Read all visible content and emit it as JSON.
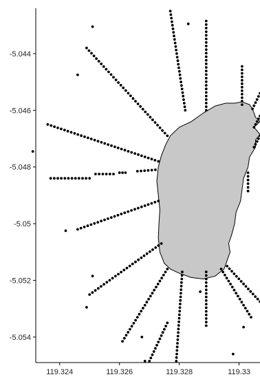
{
  "chart_data": {
    "type": "scatter",
    "title": "",
    "xlabel": "",
    "ylabel": "",
    "xlim": [
      119.3232,
      119.3307
    ],
    "ylim": [
      -5.0549,
      -5.0424
    ],
    "x_ticks": [
      "119.324",
      "119.326",
      "119.328",
      "119.33"
    ],
    "x_tick_values": [
      119.324,
      119.326,
      119.328,
      119.33
    ],
    "y_ticks": [
      "-5.044",
      "-5.046",
      "-5.048",
      "-5.05",
      "-5.052",
      "-5.054"
    ],
    "y_tick_values": [
      -5.044,
      -5.046,
      -5.048,
      -5.05,
      -5.052,
      -5.054
    ],
    "grid": false,
    "legend": false,
    "colors": {
      "island_fill": "#c8c8c8",
      "points": "#000000",
      "axes": "#000000"
    },
    "island_outline": [
      [
        119.32955,
        -5.04575
      ],
      [
        119.32985,
        -5.04575
      ],
      [
        119.3301,
        -5.0457
      ],
      [
        119.33035,
        -5.0458
      ],
      [
        119.33045,
        -5.04595
      ],
      [
        119.33055,
        -5.04625
      ],
      [
        119.3307,
        -5.0464
      ],
      [
        119.3305,
        -5.0466
      ],
      [
        119.3307,
        -5.04685
      ],
      [
        119.33055,
        -5.04705
      ],
      [
        119.33055,
        -5.0473
      ],
      [
        119.33035,
        -5.04765
      ],
      [
        119.3303,
        -5.048
      ],
      [
        119.33015,
        -5.0484
      ],
      [
        119.3301,
        -5.0488
      ],
      [
        119.33005,
        -5.0492
      ],
      [
        119.3299,
        -5.0496
      ],
      [
        119.32985,
        -5.05
      ],
      [
        119.32975,
        -5.0504
      ],
      [
        119.32965,
        -5.0507
      ],
      [
        119.3297,
        -5.051
      ],
      [
        119.3296,
        -5.0513
      ],
      [
        119.3295,
        -5.0516
      ],
      [
        119.3292,
        -5.05185
      ],
      [
        119.3288,
        -5.05195
      ],
      [
        119.3284,
        -5.0519
      ],
      [
        119.328,
        -5.05175
      ],
      [
        119.3277,
        -5.0516
      ],
      [
        119.3275,
        -5.0514
      ],
      [
        119.32735,
        -5.051
      ],
      [
        119.3273,
        -5.0505
      ],
      [
        119.32732,
        -5.05
      ],
      [
        119.32735,
        -5.0495
      ],
      [
        119.3273,
        -5.049
      ],
      [
        119.32725,
        -5.0485
      ],
      [
        119.3273,
        -5.048
      ],
      [
        119.3274,
        -5.0476
      ],
      [
        119.32755,
        -5.0472
      ],
      [
        119.3277,
        -5.0469
      ],
      [
        119.328,
        -5.0466
      ],
      [
        119.3284,
        -5.0464
      ],
      [
        119.3288,
        -5.0461
      ],
      [
        119.3292,
        -5.04585
      ]
    ],
    "points": [
      [
        119.3231,
        -5.04745
      ],
      [
        119.3246,
        -5.04475
      ],
      [
        119.3251,
        -5.04305
      ],
      [
        119.3242,
        -5.05025
      ],
      [
        119.3251,
        -5.05185
      ],
      [
        119.3249,
        -5.05295
      ],
      [
        119.32675,
        -5.054
      ],
      [
        119.32685,
        -5.05485
      ],
      [
        119.3283,
        -5.04295
      ],
      [
        119.3287,
        -5.0524
      ],
      [
        119.33015,
        -5.05365
      ],
      [
        119.3298,
        -5.0546
      ]
    ],
    "rays": [
      [
        [
          119.3277,
          -5.0425
        ],
        [
          119.3282,
          -5.046
        ]
      ],
      [
        [
          119.3289,
          -5.04285
        ],
        [
          119.3289,
          -5.046
        ]
      ],
      [
        [
          119.3301,
          -5.04445
        ],
        [
          119.3301,
          -5.0458
        ]
      ],
      [
        [
          119.3307,
          -5.0454
        ],
        [
          119.33045,
          -5.04595
        ]
      ],
      [
        [
          119.3307,
          -5.0462
        ],
        [
          119.3305,
          -5.0466
        ]
      ],
      [
        [
          119.3307,
          -5.0469
        ],
        [
          119.3305,
          -5.0473
        ]
      ],
      [
        [
          119.3249,
          -5.0438
        ],
        [
          119.3276,
          -5.0469
        ]
      ],
      [
        [
          119.3236,
          -5.0465
        ],
        [
          119.3273,
          -5.0478
        ]
      ],
      [
        [
          119.3237,
          -5.0484
        ],
        [
          119.325,
          -5.0484
        ]
      ],
      [
        [
          119.3252,
          -5.04825
        ],
        [
          119.3258,
          -5.04825
        ]
      ],
      [
        [
          119.326,
          -5.0482
        ],
        [
          119.3262,
          -5.0482
        ]
      ],
      [
        [
          119.3266,
          -5.04815
        ],
        [
          119.3272,
          -5.0481
        ]
      ],
      [
        [
          119.3246,
          -5.0502
        ],
        [
          119.3273,
          -5.0492
        ]
      ],
      [
        [
          119.325,
          -5.0525
        ],
        [
          119.3274,
          -5.0507
        ]
      ],
      [
        [
          119.3261,
          -5.05415
        ],
        [
          119.3276,
          -5.0516
        ]
      ],
      [
        [
          119.327,
          -5.05485
        ],
        [
          119.3276,
          -5.0535
        ]
      ],
      [
        [
          119.3279,
          -5.05485
        ],
        [
          119.3281,
          -5.0517
        ]
      ],
      [
        [
          119.3289,
          -5.0536
        ],
        [
          119.3289,
          -5.0517
        ]
      ],
      [
        [
          119.3307,
          -5.05275
        ],
        [
          119.3296,
          -5.0515
        ]
      ],
      [
        [
          119.3304,
          -5.0533
        ],
        [
          119.3294,
          -5.0516
        ]
      ],
      [
        [
          119.3303,
          -5.04885
        ],
        [
          119.3303,
          -5.0482
        ]
      ]
    ]
  }
}
